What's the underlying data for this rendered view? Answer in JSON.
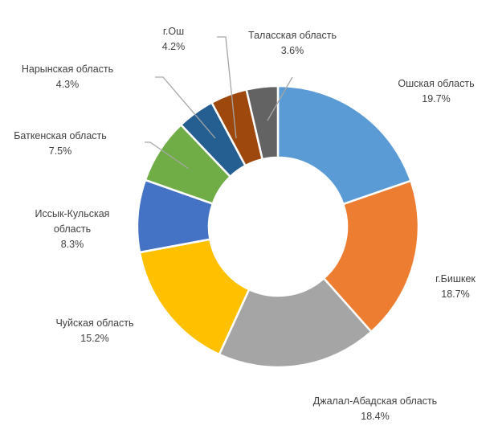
{
  "chart_data": {
    "type": "pie",
    "title": "",
    "slices": [
      {
        "label": "Ошская область",
        "value": 19.7,
        "value_label": "19.7%",
        "color": "#5b9bd5"
      },
      {
        "label": "г.Бишкек",
        "value": 18.7,
        "value_label": "18.7%",
        "color": "#ed7d31"
      },
      {
        "label": "Джалал-Абадская область",
        "value": 18.4,
        "value_label": "18.4%",
        "color": "#a5a5a5"
      },
      {
        "label": "Чуйская область",
        "value": 15.2,
        "value_label": "15.2%",
        "color": "#ffc000"
      },
      {
        "label": "Иссык-Кульская область",
        "value": 8.3,
        "value_label": "8.3%",
        "color": "#4472c4"
      },
      {
        "label": "Баткенская область",
        "value": 7.5,
        "value_label": "7.5%",
        "color": "#70ad47"
      },
      {
        "label": "Нарынская область",
        "value": 4.3,
        "value_label": "4.3%",
        "color": "#255e91"
      },
      {
        "label": "г.Ош",
        "value": 4.2,
        "value_label": "4.2%",
        "color": "#9e480e"
      },
      {
        "label": "Таласская область",
        "value": 3.6,
        "value_label": "3.6%",
        "color": "#636363"
      }
    ]
  }
}
